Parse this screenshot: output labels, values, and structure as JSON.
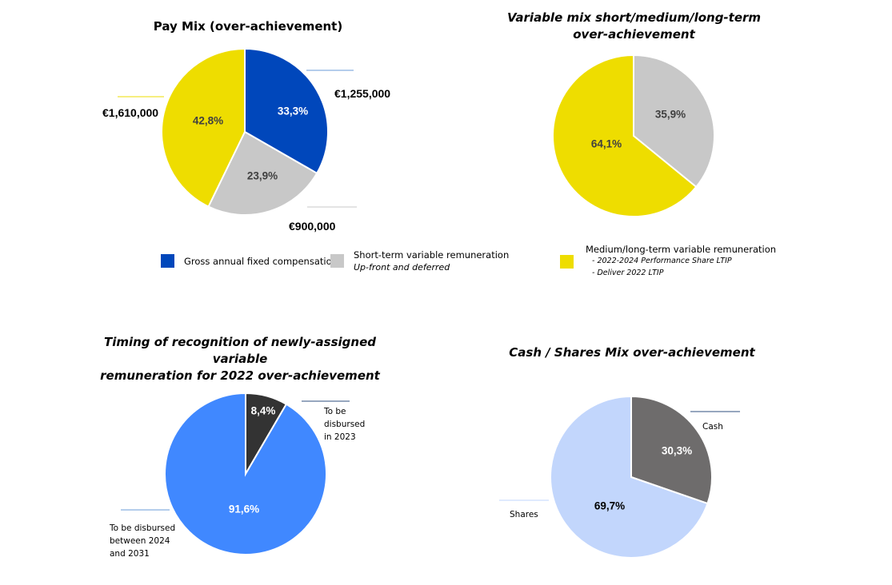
{
  "chart_data": [
    {
      "id": "pay-mix",
      "type": "pie",
      "title": "Pay Mix (over-achievement)",
      "slices": [
        {
          "label": "Gross annual fixed compensation",
          "pct": 33.3,
          "pct_label": "33,3%",
          "amount": "€1,255,000",
          "color": "#0047BB",
          "text_color": "#ffffff"
        },
        {
          "label": "Short-term variable remuneration",
          "pct": 23.9,
          "pct_label": "23,9%",
          "amount": "€900,000",
          "color": "#C8C8C8",
          "text_color": "#404040"
        },
        {
          "label": "Medium/long-term variable remuneration",
          "pct": 42.8,
          "pct_label": "42,8%",
          "amount": "€1,610,000",
          "color": "#EEDD00",
          "text_color": "#404040"
        }
      ]
    },
    {
      "id": "variable-mix",
      "type": "pie",
      "title": "Variable mix short/medium/long-term over-achievement",
      "slices": [
        {
          "label": "Short-term variable remuneration",
          "pct": 35.9,
          "pct_label": "35,9%",
          "color": "#C8C8C8",
          "text_color": "#404040"
        },
        {
          "label": "Medium/long-term variable remuneration",
          "pct": 64.1,
          "pct_label": "64,1%",
          "color": "#EEDD00",
          "text_color": "#404040"
        }
      ]
    },
    {
      "id": "timing",
      "type": "pie",
      "title": "Timing of recognition of newly-assigned variable remuneration for 2022 over-achievement",
      "slices": [
        {
          "label": "To be disbursed in 2023",
          "pct": 8.4,
          "pct_label": "8,4%",
          "color": "#333333",
          "text_color": "#ffffff"
        },
        {
          "label": "To be disbursed between 2024 and 2031",
          "pct": 91.6,
          "pct_label": "91,6%",
          "color": "#4088FF",
          "text_color": "#ffffff"
        }
      ]
    },
    {
      "id": "cash-shares",
      "type": "pie",
      "title": "Cash / Shares Mix over-achievement",
      "slices": [
        {
          "label": "Cash",
          "pct": 30.3,
          "pct_label": "30,3%",
          "color": "#6E6C6C",
          "text_color": "#ffffff"
        },
        {
          "label": "Shares",
          "pct": 69.7,
          "pct_label": "69,7%",
          "color": "#C2D6FC",
          "text_color": "#000000"
        }
      ]
    }
  ],
  "titles": {
    "pay_mix": "Pay Mix (over-achievement)",
    "variable_line1": "Variable mix short/medium/long-term",
    "variable_line2": "over-achievement",
    "timing_line1": "Timing of recognition of newly-assigned variable",
    "timing_line2": "remuneration for 2022 over-achievement",
    "cash_shares": "Cash / Shares Mix over-achievement"
  },
  "legend": {
    "fixed": "Gross annual fixed compensation",
    "short_term": "Short-term variable remuneration",
    "short_term_sub": "Up-front and deferred",
    "medium_long": "Medium/long-term variable remuneration",
    "medium_long_items": [
      "-  2022-2024 Performance Share LTIP",
      "-  Deliver 2022 LTIP"
    ]
  },
  "outside_labels": {
    "amount_fixed": "€1,255,000",
    "amount_short": "€900,000",
    "amount_medium": "€1,610,000",
    "timing_2023": [
      "To be",
      "disbursed",
      "in 2023"
    ],
    "timing_later": [
      "To be disbursed",
      "between 2024",
      "and 2031"
    ],
    "cash": "Cash",
    "shares": "Shares"
  },
  "colors": {
    "blue": "#0047BB",
    "grey": "#C8C8C8",
    "yellow": "#EEDD00",
    "dark": "#333333",
    "bright_blue": "#4088FF",
    "cash_grey": "#6E6C6C",
    "light_blue": "#C2D6FC",
    "leader_line": "#6A9BD8"
  }
}
